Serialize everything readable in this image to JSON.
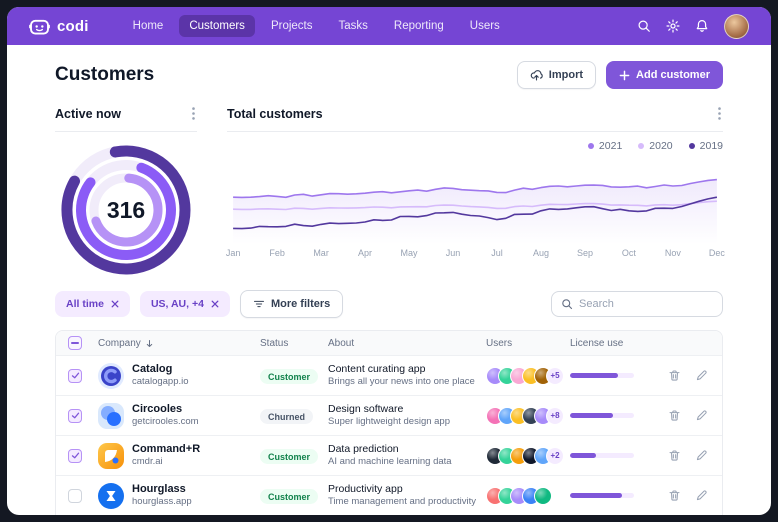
{
  "colors": {
    "nav_bg": "#7545D4",
    "nav_active_bg": "#5B34A8",
    "accent": "#7F56D9",
    "chip_bg": "#F4EBFF",
    "chip_text": "#6941C6",
    "success_bg": "#ECFDF3",
    "success_text": "#12824C",
    "neutral_bg": "#F2F4F7",
    "neutral_text": "#475467",
    "donut_track": "#F1ECFA",
    "progress_track": "#F4EBFF"
  },
  "nav": {
    "brand": "codi",
    "items": [
      {
        "label": "Home",
        "active": false
      },
      {
        "label": "Customers",
        "active": true
      },
      {
        "label": "Projects",
        "active": false
      },
      {
        "label": "Tasks",
        "active": false
      },
      {
        "label": "Reporting",
        "active": false
      },
      {
        "label": "Users",
        "active": false
      }
    ],
    "icons": [
      "search-icon",
      "settings-gear-icon",
      "notifications-bell-icon",
      "user-avatar"
    ]
  },
  "header": {
    "title": "Customers",
    "import_label": "Import",
    "add_customer_label": "Add customer"
  },
  "active_now": {
    "title": "Active now",
    "value": "316",
    "rings": [
      {
        "name": "outer",
        "color": "#53389E",
        "percent": 86,
        "start": -100
      },
      {
        "name": "middle",
        "color": "#8B5CF6",
        "percent": 80,
        "start": -70
      },
      {
        "name": "inner",
        "color": "#B692F6",
        "percent": 68,
        "start": -85
      }
    ]
  },
  "chart_data": {
    "type": "line",
    "title": "Total customers",
    "x": [
      "Jan",
      "Feb",
      "Mar",
      "Apr",
      "May",
      "Jun",
      "Jul",
      "Aug",
      "Sep",
      "Oct",
      "Nov",
      "Dec"
    ],
    "series": [
      {
        "name": "2021",
        "color": "#9E77ED",
        "area_fill": true,
        "values": [
          56,
          57,
          59,
          61,
          64,
          67,
          62,
          68,
          71,
          69,
          70,
          78
        ]
      },
      {
        "name": "2020",
        "color": "#D6BBFB",
        "area_fill": false,
        "values": [
          41,
          41,
          42,
          43,
          44,
          46,
          42,
          46,
          48,
          46,
          46,
          51
        ]
      },
      {
        "name": "2019",
        "color": "#53389E",
        "area_fill": false,
        "values": [
          17,
          19,
          22,
          25,
          32,
          37,
          28,
          39,
          44,
          39,
          42,
          56
        ]
      }
    ],
    "ylim": [
      0,
      100
    ],
    "grid": false,
    "legend_position": "top-right",
    "xlabel": "",
    "ylabel": ""
  },
  "filters": {
    "chips": [
      {
        "label": "All time"
      },
      {
        "label": "US, AU, +4"
      }
    ],
    "more_filters_label": "More filters",
    "search_placeholder": "Search"
  },
  "table": {
    "columns": {
      "company": "Company",
      "status": "Status",
      "about": "About",
      "users": "Users",
      "license": "License use"
    },
    "rows": [
      {
        "company": "Catalog",
        "domain": "catalogapp.io",
        "status": "Customer",
        "status_type": "success",
        "about": "Content curating app",
        "about_sub": "Brings all your news into one place",
        "avatar_colors": [
          "#A78BFA",
          "#34D399",
          "#F9A8D4",
          "#FBBF24",
          "#A16207"
        ],
        "extra_users": "+5",
        "license_percent": 75,
        "checked": true
      },
      {
        "company": "Circooles",
        "domain": "getcirooles.com",
        "status": "Churned",
        "status_type": "neutral",
        "about": "Design software",
        "about_sub": "Super lightweight design app",
        "avatar_colors": [
          "#F472B6",
          "#60A5FA",
          "#FBBF24",
          "#334155",
          "#A78BFA"
        ],
        "extra_users": "+8",
        "license_percent": 67,
        "checked": true
      },
      {
        "company": "Command+R",
        "domain": "cmdr.ai",
        "status": "Customer",
        "status_type": "success",
        "about": "Data prediction",
        "about_sub": "AI and machine learning data",
        "avatar_colors": [
          "#1F2937",
          "#34D399",
          "#F59E0B",
          "#0F172A",
          "#60A5FA"
        ],
        "extra_users": "+2",
        "license_percent": 40,
        "checked": true
      },
      {
        "company": "Hourglass",
        "domain": "hourglass.app",
        "status": "Customer",
        "status_type": "success",
        "about": "Productivity app",
        "about_sub": "Time management and productivity",
        "avatar_colors": [
          "#F87171",
          "#34D399",
          "#A78BFA",
          "#3B82F6",
          "#10B981"
        ],
        "extra_users": null,
        "license_percent": 82,
        "checked": false
      }
    ]
  }
}
